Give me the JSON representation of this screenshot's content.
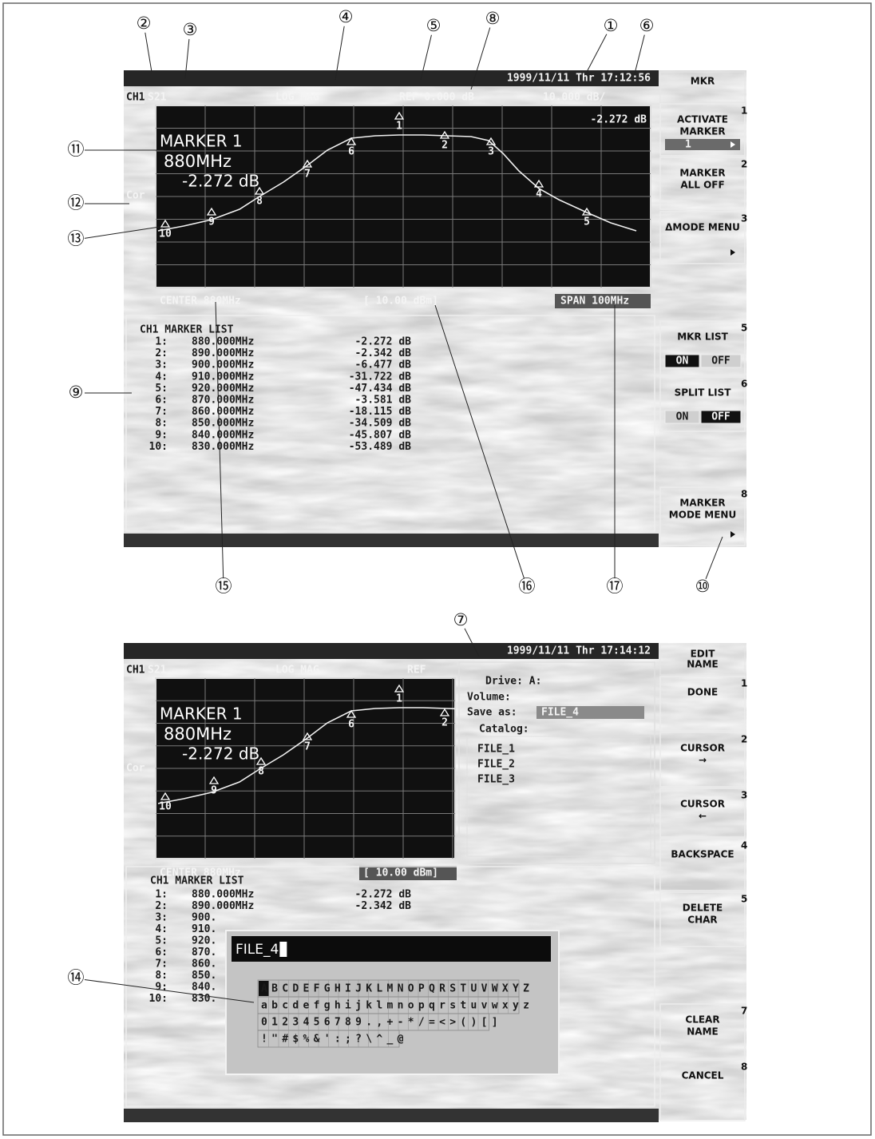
{
  "callouts": [
    "②",
    "③",
    "④",
    "⑤",
    "⑧",
    "①",
    "⑥",
    "⑪",
    "⑫",
    "⑬",
    "⑨",
    "⑮",
    "⑯",
    "⑰",
    "⑩",
    "⑦",
    "⑭"
  ],
  "screen1": {
    "status": "1999/11/11 Thr 17:12:56",
    "header": {
      "channel": "CH1",
      "parameter": "S21",
      "format": "LOG MAG",
      "ref": "REF  0.000 dB",
      "scale": "10.000 dB/"
    },
    "marker_readout": "-2.272 dB",
    "marker_info": {
      "title": "MARKER  1",
      "freq": "880MHz",
      "value": "-2.272 dB"
    },
    "cor": "Cor",
    "trace_markers": [
      "1",
      "2",
      "3",
      "4",
      "5",
      "6",
      "7",
      "8",
      "9",
      "10"
    ],
    "footer": {
      "center": "CENTER 880MHz",
      "power": "[ 10.00 dBm]",
      "span": "SPAN 100MHz"
    },
    "marker_list": {
      "title": "CH1 MARKER LIST",
      "rows": [
        [
          "1:",
          "880.000MHz",
          "-2.272 dB"
        ],
        [
          "2:",
          "890.000MHz",
          "-2.342 dB"
        ],
        [
          "3:",
          "900.000MHz",
          "-6.477 dB"
        ],
        [
          "4:",
          "910.000MHz",
          "-31.722 dB"
        ],
        [
          "5:",
          "920.000MHz",
          "-47.434 dB"
        ],
        [
          "6:",
          "870.000MHz",
          "-3.581 dB"
        ],
        [
          "7:",
          "860.000MHz",
          "-18.115 dB"
        ],
        [
          "8:",
          "850.000MHz",
          "-34.509 dB"
        ],
        [
          "9:",
          "840.000MHz",
          "-45.807 dB"
        ],
        [
          "10:",
          "830.000MHz",
          "-53.489 dB"
        ]
      ]
    },
    "softkeys": {
      "title": [
        "MKR"
      ],
      "keys": [
        {
          "lines": [
            "ACTIVATE",
            "MARKER"
          ],
          "number": "1",
          "value": "1"
        },
        {
          "lines": [
            "MARKER",
            "ALL OFF"
          ],
          "number": "2"
        },
        {
          "lines": [
            "ΔMODE MENU"
          ],
          "number": "3"
        },
        {
          "lines": [
            "MKR LIST"
          ],
          "number": "5",
          "options": [
            "ON",
            "OFF"
          ],
          "selected": 0
        },
        {
          "lines": [
            "SPLIT LIST"
          ],
          "number": "6",
          "options": [
            "ON",
            "OFF"
          ],
          "selected": 1
        },
        {
          "lines": [
            "MARKER",
            "MODE MENU"
          ],
          "number": "8"
        }
      ]
    }
  },
  "screen2": {
    "status": "1999/11/11 Thr 17:14:12",
    "header": {
      "channel": "CH1",
      "parameter": "S21",
      "format": "LOG MAG",
      "ref": "REF"
    },
    "marker_info": {
      "title": "MARKER  1",
      "freq": "880MHz",
      "value": "-2.272 dB"
    },
    "cor": "Cor",
    "trace_markers": [
      "10",
      "9",
      "8",
      "7",
      "6",
      "1",
      "2"
    ],
    "footer": {
      "center": "CENTER 880MHz",
      "power": "[ 10.00 dBm]"
    },
    "file_panel": {
      "drive": "Drive: A:",
      "volume": "Volume:",
      "save_as": "Save as:",
      "file_name": "FILE_4",
      "catalog": "Catalog:",
      "files": [
        "FILE_1",
        "FILE_2",
        "FILE_3"
      ]
    },
    "marker_list": {
      "title": "CH1 MARKER LIST",
      "rows": [
        [
          "1:",
          "880.000MHz",
          "-2.272 dB"
        ],
        [
          "2:",
          "890.000MHz",
          "-2.342 dB"
        ],
        [
          "3:",
          "900."
        ],
        [
          "4:",
          "910."
        ],
        [
          "5:",
          "920."
        ],
        [
          "6:",
          "870."
        ],
        [
          "7:",
          "860."
        ],
        [
          "8:",
          "850."
        ],
        [
          "9:",
          "840."
        ],
        [
          "10:",
          "830."
        ]
      ]
    },
    "dialog": {
      "input": "FILE_4",
      "characters": [
        "ABCDEFGHIJKLMNOPQRSTUVWXYZ",
        "abcdefghijklmnopqrstuvwxyz",
        "0123456789.,+-*/=<>()[]",
        "!\"#$%&':;?\\^_@"
      ]
    },
    "softkeys": {
      "title": [
        "EDIT",
        "NAME"
      ],
      "keys": [
        {
          "lines": [
            "DONE"
          ],
          "number": "1"
        },
        {
          "lines": [
            "CURSOR",
            "→"
          ],
          "number": "2"
        },
        {
          "lines": [
            "CURSOR",
            "←"
          ],
          "number": "3"
        },
        {
          "lines": [
            "BACKSPACE"
          ],
          "number": "4"
        },
        {
          "lines": [
            "DELETE",
            "CHAR"
          ],
          "number": "5"
        },
        {
          "lines": [
            "CLEAR",
            "NAME"
          ],
          "number": "7"
        },
        {
          "lines": [
            "CANCEL"
          ],
          "number": "8"
        }
      ]
    }
  }
}
